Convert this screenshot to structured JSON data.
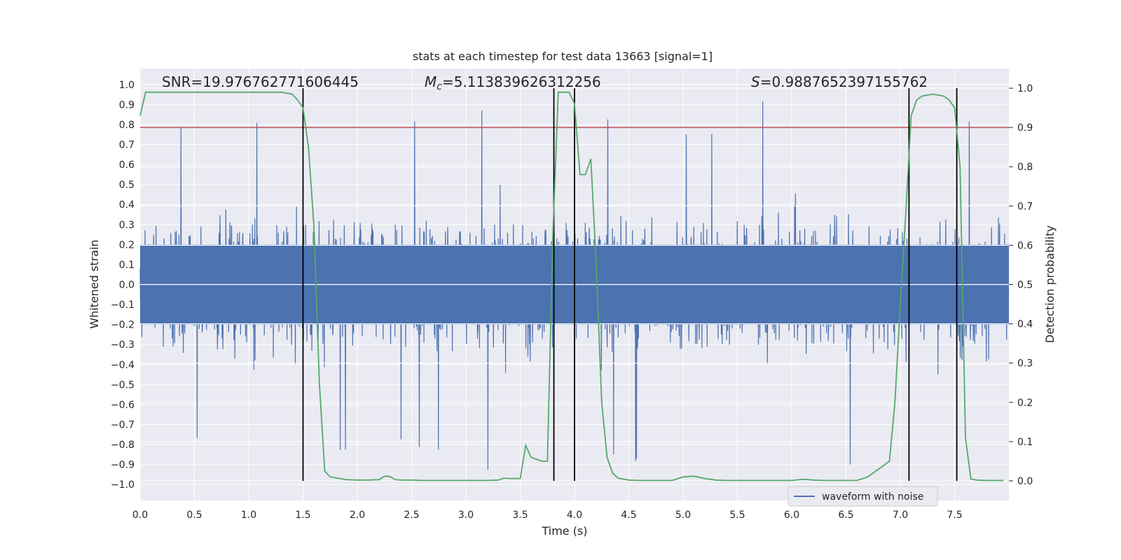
{
  "chart_data": {
    "type": "line",
    "title": "stats at each timestep for test data 13663 [signal=1]",
    "xlabel": "Time (s)",
    "ylabel_left": "Whitened strain",
    "ylabel_right": "Detection probability",
    "xlim": [
      0.0,
      8.0
    ],
    "ylim_left": [
      -1.08,
      1.08
    ],
    "ylim_right": [
      -0.05,
      1.05
    ],
    "x_ticks": [
      "0.0",
      "0.5",
      "1.0",
      "1.5",
      "2.0",
      "2.5",
      "3.0",
      "3.5",
      "4.0",
      "4.5",
      "5.0",
      "5.5",
      "6.0",
      "6.5",
      "7.0",
      "7.5"
    ],
    "y_left_ticks": [
      "1.0",
      "0.9",
      "0.8",
      "0.7",
      "0.6",
      "0.5",
      "0.4",
      "0.3",
      "0.2",
      "0.1",
      "0.0",
      "−0.1",
      "−0.2",
      "−0.3",
      "−0.4",
      "−0.5",
      "−0.6",
      "−0.7",
      "−0.8",
      "−0.9",
      "−1.0"
    ],
    "y_right_ticks": [
      "1.0",
      "0.9",
      "0.8",
      "0.7",
      "0.6",
      "0.5",
      "0.4",
      "0.3",
      "0.2",
      "0.1",
      "0.0"
    ],
    "threshold": 0.9,
    "annotations": {
      "snr": "SNR=19.976762771606445",
      "mc_symbol": "M",
      "mc_sub": "c",
      "mc_value": "=5.113839626312256",
      "s_symbol": "S",
      "s_value": "=0.9887652397155762"
    },
    "vertical_lines_time": [
      1.5,
      3.81,
      4.0,
      7.08,
      7.52
    ],
    "legend": [
      "waveform with noise"
    ],
    "series": [
      {
        "name": "waveform with noise",
        "description": "noisy whitened strain, amplitude ~ up to ±0.95",
        "color": "#4c72b0"
      },
      {
        "name": "detection probability",
        "color": "#55a868",
        "x": [
          0.0,
          0.05,
          0.1,
          0.2,
          0.3,
          0.4,
          0.5,
          0.6,
          0.7,
          0.8,
          0.9,
          1.0,
          1.1,
          1.2,
          1.3,
          1.4,
          1.45,
          1.5,
          1.55,
          1.6,
          1.65,
          1.7,
          1.75,
          1.8,
          1.9,
          2.0,
          2.1,
          2.2,
          2.25,
          2.3,
          2.35,
          2.4,
          2.5,
          2.6,
          2.7,
          2.8,
          2.9,
          3.0,
          3.1,
          3.2,
          3.3,
          3.35,
          3.4,
          3.5,
          3.55,
          3.6,
          3.7,
          3.75,
          3.8,
          3.85,
          3.9,
          3.95,
          4.0,
          4.05,
          4.1,
          4.15,
          4.2,
          4.25,
          4.3,
          4.35,
          4.4,
          4.5,
          4.6,
          4.7,
          4.8,
          4.9,
          5.0,
          5.1,
          5.2,
          5.3,
          5.4,
          5.5,
          5.6,
          5.7,
          5.8,
          5.9,
          6.0,
          6.1,
          6.2,
          6.3,
          6.4,
          6.5,
          6.6,
          6.7,
          6.8,
          6.9,
          6.95,
          7.0,
          7.05,
          7.1,
          7.15,
          7.2,
          7.3,
          7.4,
          7.45,
          7.5,
          7.55,
          7.6,
          7.65,
          7.7,
          7.8,
          7.95
        ],
        "values": [
          0.93,
          0.99,
          0.99,
          0.99,
          0.99,
          0.99,
          0.99,
          0.99,
          0.99,
          0.99,
          0.99,
          0.99,
          0.99,
          0.99,
          0.99,
          0.985,
          0.97,
          0.95,
          0.85,
          0.65,
          0.25,
          0.025,
          0.01,
          0.008,
          0.003,
          0.002,
          0.002,
          0.003,
          0.012,
          0.011,
          0.003,
          0.002,
          0.002,
          0.001,
          0.001,
          0.001,
          0.001,
          0.001,
          0.001,
          0.001,
          0.002,
          0.007,
          0.006,
          0.006,
          0.09,
          0.06,
          0.05,
          0.05,
          0.62,
          0.99,
          0.99,
          0.99,
          0.96,
          0.78,
          0.78,
          0.82,
          0.55,
          0.2,
          0.06,
          0.02,
          0.007,
          0.002,
          0.001,
          0.001,
          0.001,
          0.001,
          0.01,
          0.012,
          0.006,
          0.002,
          0.001,
          0.001,
          0.001,
          0.001,
          0.001,
          0.001,
          0.001,
          0.004,
          0.002,
          0.001,
          0.001,
          0.001,
          0.001,
          0.01,
          0.03,
          0.05,
          0.2,
          0.45,
          0.68,
          0.93,
          0.97,
          0.98,
          0.985,
          0.98,
          0.97,
          0.95,
          0.8,
          0.11,
          0.005,
          0.002,
          0.001,
          0.001
        ]
      }
    ]
  }
}
